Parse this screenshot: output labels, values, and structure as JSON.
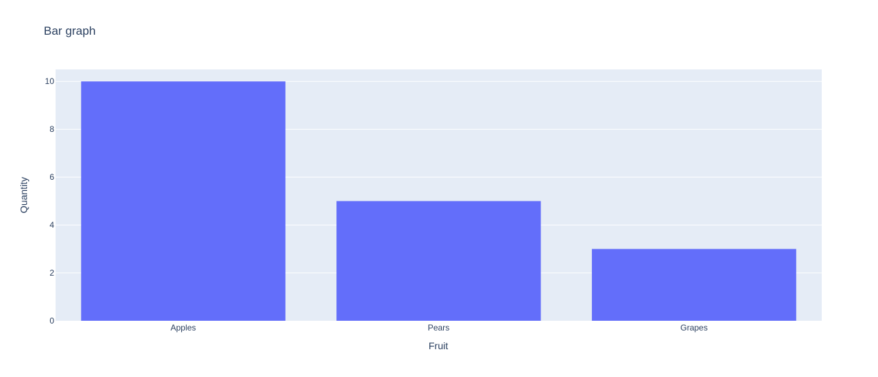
{
  "chart_data": {
    "type": "bar",
    "title": "Bar graph",
    "xlabel": "Fruit",
    "ylabel": "Quantity",
    "categories": [
      "Apples",
      "Pears",
      "Grapes"
    ],
    "values": [
      10,
      5,
      3
    ],
    "ylim": [
      0,
      10.5
    ],
    "yticks": [
      0,
      2,
      4,
      6,
      8,
      10
    ],
    "grid": true,
    "colors": {
      "bar": "#636efa",
      "plot_background": "#e5ecf6",
      "gridline": "#ffffff",
      "text": "#2a3f5f"
    }
  }
}
